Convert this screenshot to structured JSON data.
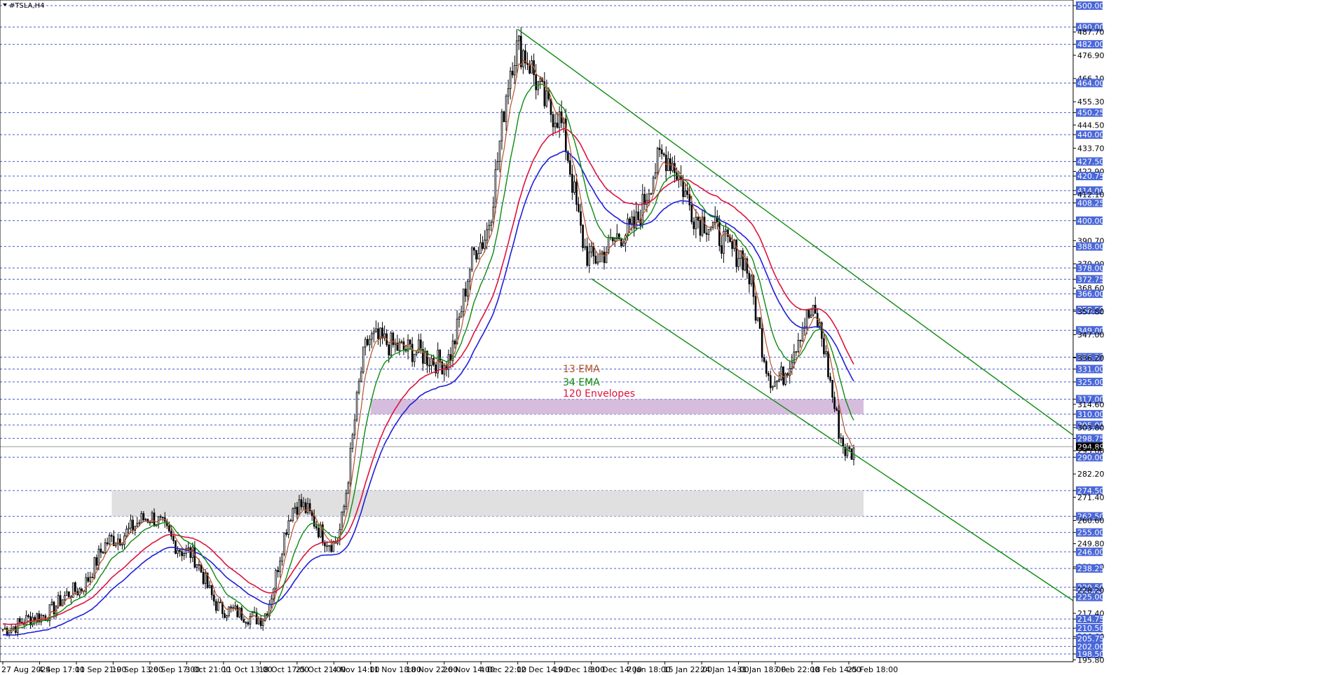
{
  "window": {
    "title": "#TSLA,H4"
  },
  "legend": {
    "ema13": "13 EMA",
    "ema34": "34 EMA",
    "env120": "120 Envelopes"
  },
  "colors": {
    "ema13": "#b5532a",
    "ema34": "#0e8a0e",
    "env_upper": "#dc143c",
    "env_lower": "#1f1fd6",
    "trendline": "#0e8a0e",
    "grid": "#4a5bd4",
    "candle": "#000000",
    "zone_resistance": "#cfb1d8",
    "zone_support": "#dadada",
    "current_price_box": "#000000"
  },
  "chart_data": {
    "type": "candlestick",
    "symbol": "#TSLA",
    "timeframe": "H4",
    "ylim": [
      193,
      502
    ],
    "current_price": "294.89",
    "price_axis_labels": [
      "500.00",
      "490.00",
      "487.70",
      "482.00",
      "476.90",
      "466.10",
      "464.00",
      "455.30",
      "450.25",
      "444.50",
      "440.00",
      "433.70",
      "427.50",
      "422.90",
      "420.75",
      "414.00",
      "412.10",
      "408.25",
      "400.00",
      "390.70",
      "388.00",
      "379.90",
      "378.00",
      "372.75",
      "368.60",
      "366.00",
      "358.50",
      "357.80",
      "349.00",
      "347.00",
      "336.50",
      "336.20",
      "331.00",
      "325.00",
      "317.00",
      "314.60",
      "310.00",
      "305.00",
      "303.80",
      "298.75",
      "294.89",
      "293.00",
      "290.00",
      "282.20",
      "274.50",
      "271.40",
      "262.50",
      "260.60",
      "255.00",
      "249.80",
      "246.00",
      "239.00",
      "238.25",
      "229.50",
      "228.20",
      "225.00",
      "217.40",
      "214.75",
      "210.50",
      "206.60",
      "205.75",
      "202.00",
      "198.50",
      "195.80"
    ],
    "highlighted_levels": [
      "500.00",
      "490.00",
      "482.00",
      "464.00",
      "450.25",
      "440.00",
      "427.50",
      "420.75",
      "414.00",
      "408.25",
      "400.00",
      "388.00",
      "378.00",
      "372.75",
      "366.00",
      "358.50",
      "349.00",
      "336.50",
      "331.00",
      "325.00",
      "317.00",
      "310.00",
      "305.00",
      "298.75",
      "290.00",
      "274.50",
      "262.50",
      "255.00",
      "246.00",
      "238.25",
      "229.50",
      "225.00",
      "214.75",
      "210.50",
      "205.75",
      "202.00",
      "198.50"
    ],
    "time_axis_labels": [
      "27 Aug 2024",
      "4 Sep 17:00",
      "11 Sep 21:00",
      "19 Sep 13:00",
      "26 Sep 17:00",
      "3 Oct 21:00",
      "11 Oct 13:00",
      "18 Oct 17:00",
      "25 Oct 21:00",
      "4 Nov 14:00",
      "11 Nov 18:00",
      "18 Nov 22:00",
      "26 Nov 14:00",
      "4 Dec 22:00",
      "12 Dec 14:00",
      "19 Dec 18:00",
      "30 Dec 14:00",
      "7 Jan 18:00",
      "15 Jan 22:00",
      "24 Jan 14:00",
      "31 Jan 18:00",
      "7 Feb 22:00",
      "18 Feb 14:00",
      "25 Feb 18:00"
    ],
    "price_anchors": [
      {
        "t": "27 Aug 2024",
        "p": 210
      },
      {
        "t": "4 Sep 17:00",
        "p": 216
      },
      {
        "t": "11 Sep 21:00",
        "p": 228
      },
      {
        "t": "19 Sep 13:00",
        "p": 252
      },
      {
        "t": "26 Sep 17:00",
        "p": 262
      },
      {
        "t": "3 Oct 21:00",
        "p": 246
      },
      {
        "t": "11 Oct 13:00",
        "p": 219
      },
      {
        "t": "18 Oct 17:00",
        "p": 215
      },
      {
        "t": "25 Oct 21:00",
        "p": 268
      },
      {
        "t": "4 Nov 14:00",
        "p": 250
      },
      {
        "t": "11 Nov 18:00",
        "p": 345
      },
      {
        "t": "18 Nov 22:00",
        "p": 340
      },
      {
        "t": "26 Nov 14:00",
        "p": 334
      },
      {
        "t": "4 Dec 22:00",
        "p": 390
      },
      {
        "t": "12 Dec 14:00",
        "p": 480
      },
      {
        "t": "19 Dec 18:00",
        "p": 450
      },
      {
        "t": "30 Dec 14:00",
        "p": 382
      },
      {
        "t": "7 Jan 18:00",
        "p": 395
      },
      {
        "t": "15 Jan 22:00",
        "p": 430
      },
      {
        "t": "24 Jan 14:00",
        "p": 400
      },
      {
        "t": "31 Jan 18:00",
        "p": 385
      },
      {
        "t": "7 Feb 22:00",
        "p": 325
      },
      {
        "t": "18 Feb 14:00",
        "p": 356
      },
      {
        "t": "25 Feb 18:00",
        "p": 292
      }
    ],
    "zones": [
      {
        "name": "resistance",
        "from": "11 Nov 18:00",
        "to": "25 Feb 18:00",
        "low": 310,
        "high": 317
      },
      {
        "name": "support",
        "from": "19 Sep 13:00",
        "to": "25 Feb 18:00",
        "low": 262.5,
        "high": 274.5
      }
    ],
    "trendlines": [
      {
        "name": "upper",
        "p1": {
          "t": "12 Dec 14:00",
          "p": 489
        },
        "p2": {
          "t": "15 Jan 22:00",
          "p": 439
        }
      },
      {
        "name": "lower",
        "p1": {
          "t": "30 Dec 14:00",
          "p": 373
        },
        "p2": {
          "t": "25 Feb 18:00",
          "p": 293
        }
      }
    ]
  }
}
